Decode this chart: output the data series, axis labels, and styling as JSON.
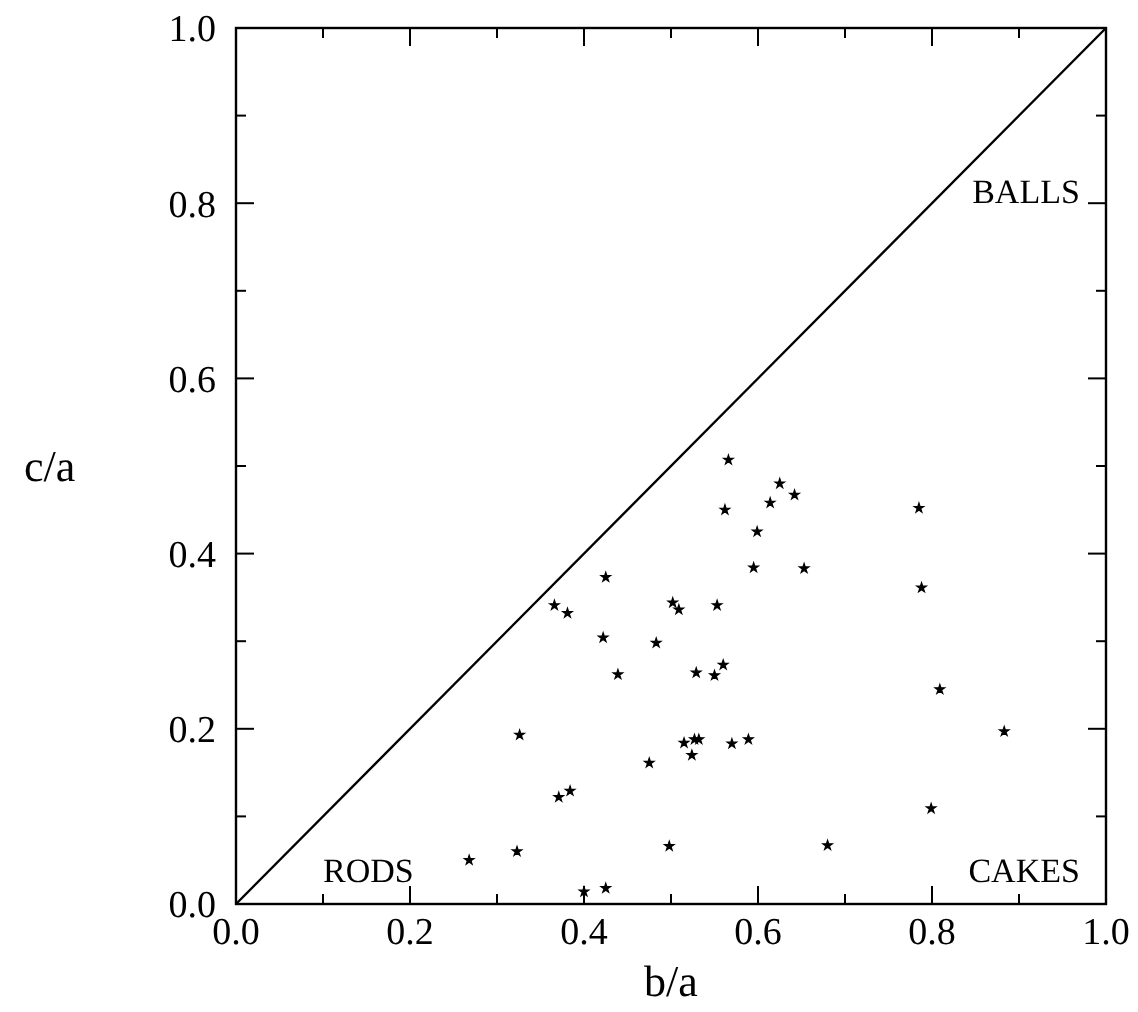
{
  "chart_data": {
    "type": "scatter",
    "xlabel": "b/a",
    "ylabel": "c/a",
    "xlim": [
      0,
      1
    ],
    "ylim": [
      0,
      1
    ],
    "xticks": [
      {
        "value": 0,
        "label": "0.0"
      },
      {
        "value": 0.1,
        "label": null
      },
      {
        "value": 0.2,
        "label": "0.2"
      },
      {
        "value": 0.3,
        "label": null
      },
      {
        "value": 0.4,
        "label": "0.4"
      },
      {
        "value": 0.5,
        "label": null
      },
      {
        "value": 0.6,
        "label": "0.6"
      },
      {
        "value": 0.7,
        "label": null
      },
      {
        "value": 0.8,
        "label": "0.8"
      },
      {
        "value": 0.9,
        "label": null
      },
      {
        "value": 1,
        "label": "1.0"
      }
    ],
    "yticks": [
      {
        "value": 0,
        "label": "0.0"
      },
      {
        "value": 0.1,
        "label": null
      },
      {
        "value": 0.2,
        "label": "0.2"
      },
      {
        "value": 0.3,
        "label": null
      },
      {
        "value": 0.4,
        "label": "0.4"
      },
      {
        "value": 0.5,
        "label": null
      },
      {
        "value": 0.6,
        "label": "0.6"
      },
      {
        "value": 0.7,
        "label": null
      },
      {
        "value": 0.8,
        "label": "0.8"
      },
      {
        "value": 0.9,
        "label": null
      },
      {
        "value": 1,
        "label": "1.0"
      }
    ],
    "marker": "star",
    "grid": false,
    "annotations": [
      "BALLS",
      "RODS",
      "CAKES"
    ],
    "series": [
      {
        "color": "#000000",
        "x": [
          0.566,
          0.625,
          0.642,
          0.614,
          0.562,
          0.785,
          0.599,
          0.595,
          0.653,
          0.788,
          0.425,
          0.366,
          0.381,
          0.502,
          0.509,
          0.553,
          0.422,
          0.483,
          0.439,
          0.529,
          0.55,
          0.56,
          0.809,
          0.883,
          0.326,
          0.515,
          0.527,
          0.532,
          0.524,
          0.57,
          0.589,
          0.475,
          0.371,
          0.384,
          0.799,
          0.498,
          0.68,
          0.323,
          0.268,
          0.4,
          0.425
        ],
        "values": [
          0.507,
          0.48,
          0.467,
          0.458,
          0.45,
          0.452,
          0.425,
          0.384,
          0.383,
          0.361,
          0.373,
          0.341,
          0.332,
          0.344,
          0.336,
          0.341,
          0.304,
          0.298,
          0.262,
          0.264,
          0.261,
          0.273,
          0.245,
          0.197,
          0.193,
          0.184,
          0.188,
          0.188,
          0.17,
          0.183,
          0.188,
          0.161,
          0.122,
          0.129,
          0.109,
          0.066,
          0.067,
          0.06,
          0.05,
          0.014,
          0.018
        ]
      },
      {
        "type": "line",
        "color": "#000000",
        "line_style": "solid",
        "marker": "none",
        "x": [
          0,
          1
        ],
        "values": [
          0,
          1
        ]
      }
    ]
  }
}
